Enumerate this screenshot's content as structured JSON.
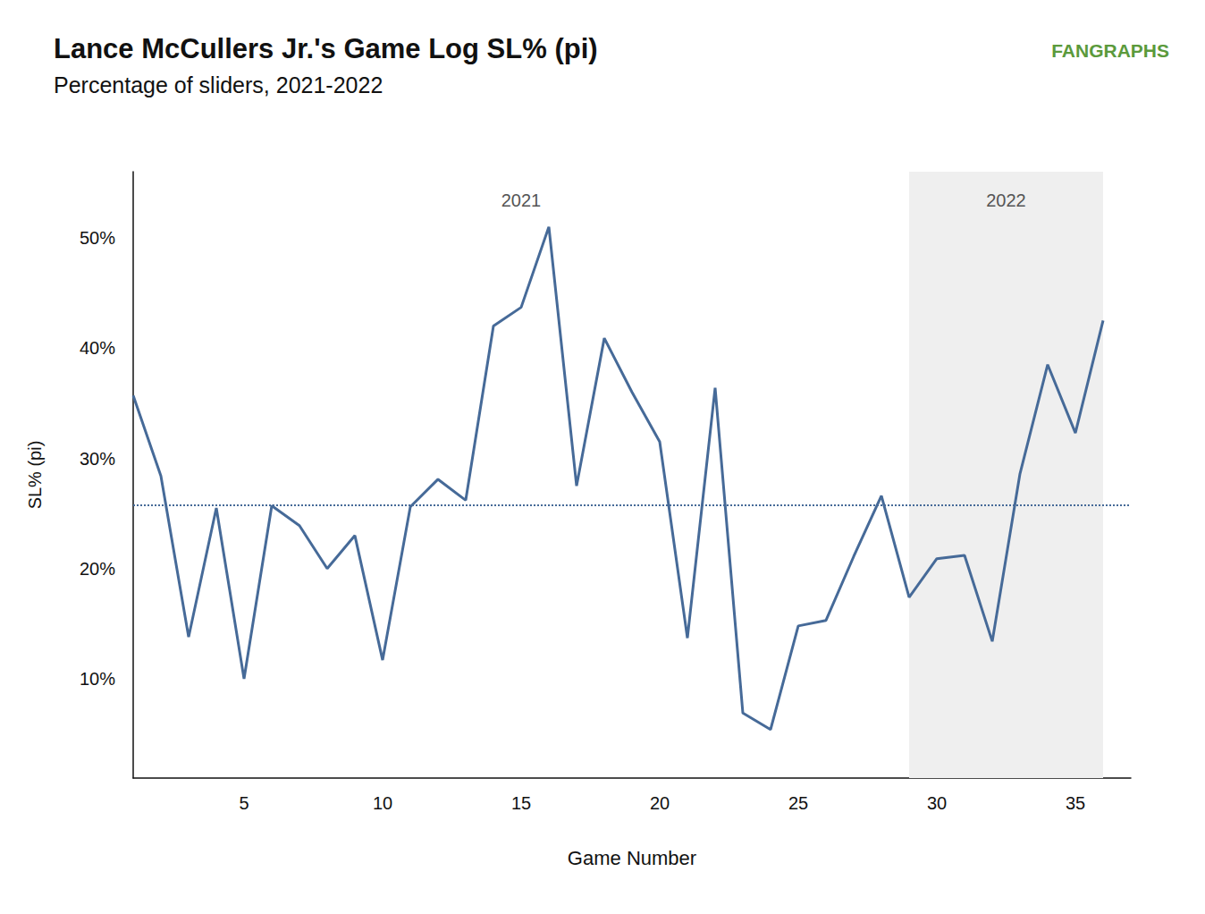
{
  "chart_data": {
    "type": "line",
    "title": "Lance McCullers Jr.'s Game Log SL% (pi)",
    "subtitle": "Percentage of sliders, 2021-2022",
    "logo": "FANGRAPHS",
    "x_label": "Game Number",
    "y_label": "SL% (pi)",
    "x": [
      1,
      2,
      3,
      4,
      5,
      6,
      7,
      8,
      9,
      10,
      11,
      12,
      13,
      14,
      15,
      16,
      17,
      18,
      19,
      20,
      21,
      22,
      23,
      24,
      25,
      26,
      27,
      28,
      29,
      30,
      31,
      32,
      33,
      34,
      35,
      36
    ],
    "values": [
      35.7,
      28.4,
      13.8,
      25.5,
      10.0,
      25.7,
      23.9,
      20.0,
      23.0,
      11.7,
      25.6,
      28.1,
      26.2,
      42.0,
      43.7,
      51.0,
      27.5,
      40.9,
      36.0,
      31.5,
      13.7,
      36.4,
      6.9,
      5.4,
      14.8,
      15.3,
      21.1,
      26.6,
      17.4,
      20.9,
      21.2,
      13.4,
      28.6,
      38.5,
      32.3,
      42.5
    ],
    "color": "#466a98",
    "average": 25.8,
    "seasons": [
      {
        "label": "2021",
        "x": [
          1,
          29
        ]
      },
      {
        "label": "2022",
        "x": [
          29,
          36
        ],
        "color": "#efefef"
      }
    ],
    "xlim": [
      1,
      37
    ],
    "xticks": [
      5,
      10,
      15,
      20,
      25,
      30,
      35
    ],
    "ylim": [
      1,
      56
    ],
    "yticks": [
      {
        "value": 10,
        "label": "10%"
      },
      {
        "value": 20,
        "label": "20%"
      },
      {
        "value": 30,
        "label": "30%"
      },
      {
        "value": 40,
        "label": "40%"
      },
      {
        "value": 50,
        "label": "50%"
      }
    ],
    "grid": false
  }
}
